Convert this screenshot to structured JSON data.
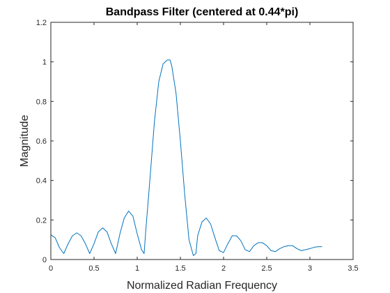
{
  "chart_data": {
    "type": "line",
    "title": "Bandpass Filter (centered at 0.44*pi)",
    "xlabel": "Normalized Radian Frequency",
    "ylabel": "Magnitude",
    "xlim": [
      0,
      3.5
    ],
    "ylim": [
      0,
      1.2
    ],
    "xticks": [
      0,
      0.5,
      1,
      1.5,
      2,
      2.5,
      3,
      3.5
    ],
    "xtick_labels": [
      "0",
      "0.5",
      "1",
      "1.5",
      "2",
      "2.5",
      "3",
      "3.5"
    ],
    "yticks": [
      0,
      0.2,
      0.4,
      0.6,
      0.8,
      1,
      1.2
    ],
    "ytick_labels": [
      "0",
      "0.2",
      "0.4",
      "0.6",
      "0.8",
      "1",
      "1.2"
    ],
    "grid": false,
    "line_color": "#0072BD",
    "series": [
      {
        "x": [
          0,
          0.05,
          0.1,
          0.15,
          0.2,
          0.25,
          0.3,
          0.35,
          0.4,
          0.45,
          0.5,
          0.55,
          0.6,
          0.65,
          0.7,
          0.75,
          0.8,
          0.85,
          0.9,
          0.95,
          1.0,
          1.05,
          1.08,
          1.1,
          1.15,
          1.2,
          1.25,
          1.3,
          1.35,
          1.38,
          1.4,
          1.45,
          1.5,
          1.55,
          1.6,
          1.65,
          1.68,
          1.7,
          1.75,
          1.8,
          1.85,
          1.9,
          1.95,
          2.0,
          2.05,
          2.1,
          2.15,
          2.2,
          2.25,
          2.3,
          2.35,
          2.4,
          2.45,
          2.5,
          2.55,
          2.6,
          2.65,
          2.7,
          2.75,
          2.8,
          2.85,
          2.9,
          2.95,
          3.0,
          3.05,
          3.1,
          3.14
        ],
        "y": [
          0.125,
          0.11,
          0.06,
          0.03,
          0.08,
          0.12,
          0.135,
          0.12,
          0.08,
          0.03,
          0.08,
          0.14,
          0.16,
          0.14,
          0.08,
          0.03,
          0.13,
          0.21,
          0.245,
          0.22,
          0.13,
          0.05,
          0.03,
          0.15,
          0.42,
          0.7,
          0.9,
          0.99,
          1.01,
          1.01,
          0.98,
          0.84,
          0.6,
          0.33,
          0.1,
          0.02,
          0.03,
          0.12,
          0.19,
          0.21,
          0.18,
          0.11,
          0.045,
          0.035,
          0.08,
          0.12,
          0.12,
          0.095,
          0.05,
          0.04,
          0.07,
          0.085,
          0.085,
          0.07,
          0.045,
          0.04,
          0.055,
          0.065,
          0.07,
          0.07,
          0.055,
          0.045,
          0.05,
          0.055,
          0.062,
          0.065,
          0.065
        ]
      }
    ]
  }
}
